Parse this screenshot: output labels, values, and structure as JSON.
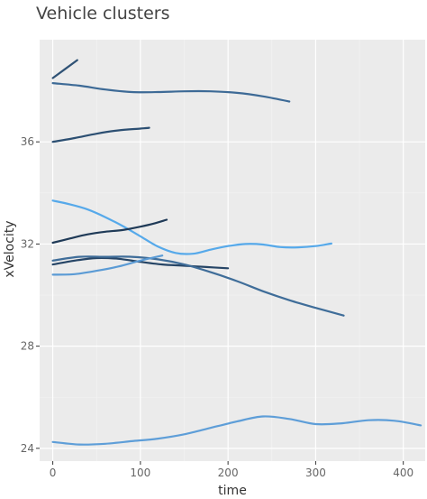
{
  "chart_data": {
    "type": "line",
    "title": "Vehicle clusters",
    "xlabel": "time",
    "ylabel": "xVelocity",
    "xlim": [
      -15,
      425
    ],
    "ylim": [
      23.5,
      40.0
    ],
    "xticks": [
      0,
      100,
      200,
      300,
      400
    ],
    "yticks": [
      24,
      28,
      32,
      36
    ],
    "grid": true,
    "background": "#ebebeb",
    "series": [
      {
        "color": "#2f5275",
        "x": [
          0,
          28
        ],
        "y": [
          38.5,
          39.2
        ]
      },
      {
        "color": "#3d6a96",
        "x": [
          0,
          30,
          60,
          90,
          120,
          150,
          180,
          210,
          240,
          270
        ],
        "y": [
          38.3,
          38.2,
          38.05,
          37.95,
          37.95,
          37.98,
          37.98,
          37.92,
          37.78,
          37.58
        ]
      },
      {
        "color": "#2c4f72",
        "x": [
          0,
          25,
          50,
          75,
          100,
          110
        ],
        "y": [
          36.0,
          36.15,
          36.32,
          36.45,
          36.52,
          36.55
        ]
      },
      {
        "color": "#56a9ea",
        "x": [
          0,
          20,
          40,
          60,
          80,
          100,
          120,
          140,
          160,
          180,
          200,
          220,
          240,
          260,
          280,
          300,
          318
        ],
        "y": [
          33.7,
          33.55,
          33.35,
          33.05,
          32.7,
          32.3,
          31.9,
          31.65,
          31.62,
          31.78,
          31.92,
          32.0,
          31.98,
          31.88,
          31.87,
          31.92,
          32.02
        ]
      },
      {
        "color": "#1f3a57",
        "x": [
          0,
          20,
          40,
          60,
          80,
          100,
          115,
          130
        ],
        "y": [
          32.05,
          32.22,
          32.38,
          32.48,
          32.55,
          32.68,
          32.8,
          32.95
        ]
      },
      {
        "color": "#264566",
        "x": [
          0,
          25,
          50,
          75,
          100,
          125,
          150,
          175,
          200
        ],
        "y": [
          31.2,
          31.35,
          31.45,
          31.42,
          31.3,
          31.2,
          31.15,
          31.1,
          31.05
        ]
      },
      {
        "color": "#3f6d99",
        "x": [
          0,
          30,
          60,
          90,
          120,
          150,
          180,
          210,
          240,
          270,
          300,
          332
        ],
        "y": [
          31.35,
          31.5,
          31.5,
          31.5,
          31.4,
          31.2,
          30.9,
          30.55,
          30.15,
          29.8,
          29.5,
          29.2
        ]
      },
      {
        "color": "#5b9bd5",
        "x": [
          0,
          25,
          50,
          75,
          100,
          125
        ],
        "y": [
          30.8,
          30.82,
          30.95,
          31.12,
          31.35,
          31.55
        ]
      },
      {
        "color": "#5e9ed8",
        "x": [
          0,
          30,
          60,
          90,
          120,
          150,
          180,
          210,
          240,
          270,
          300,
          330,
          360,
          390,
          420
        ],
        "y": [
          24.25,
          24.15,
          24.18,
          24.28,
          24.38,
          24.55,
          24.8,
          25.05,
          25.25,
          25.15,
          24.95,
          24.98,
          25.1,
          25.08,
          24.9
        ]
      }
    ]
  }
}
